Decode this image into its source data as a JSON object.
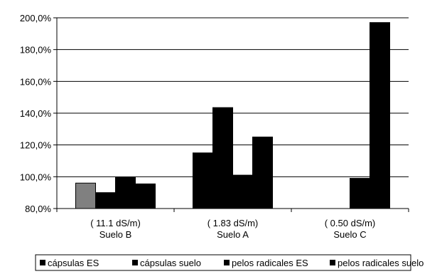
{
  "chart_data": {
    "type": "bar",
    "categories": [
      {
        "line1": "( 11.1 dS/m)",
        "line2": "Suelo B"
      },
      {
        "line1": "( 1.83 dS/m)",
        "line2": "Suelo A"
      },
      {
        "line1": "(  0.50 dS/m)",
        "line2": "Suelo C"
      }
    ],
    "series": [
      {
        "name": "cápsulas ES",
        "color": "#000000",
        "values": [
          96.0,
          115.0,
          null
        ]
      },
      {
        "name": "cápsulas suelo",
        "color": "#000000",
        "values": [
          90.0,
          143.5,
          null
        ]
      },
      {
        "name": "pelos radicales ES",
        "color": "#000000",
        "values": [
          99.5,
          101.0,
          99.0
        ]
      },
      {
        "name": "pelos radicales suelo",
        "color": "#000000",
        "values": [
          95.5,
          125.0,
          197.0
        ]
      }
    ],
    "highlight": {
      "series": 0,
      "category": 0,
      "color": "#808080"
    },
    "ylim": [
      80,
      200
    ],
    "yticks": [
      "80,0%",
      "100,0%",
      "120,0%",
      "140,0%",
      "160,0%",
      "180,0%",
      "200,0%"
    ],
    "ytick_values": [
      80,
      100,
      120,
      140,
      160,
      180,
      200
    ],
    "grid": true,
    "legend_position": "bottom",
    "title": "",
    "xlabel": "",
    "ylabel": ""
  }
}
